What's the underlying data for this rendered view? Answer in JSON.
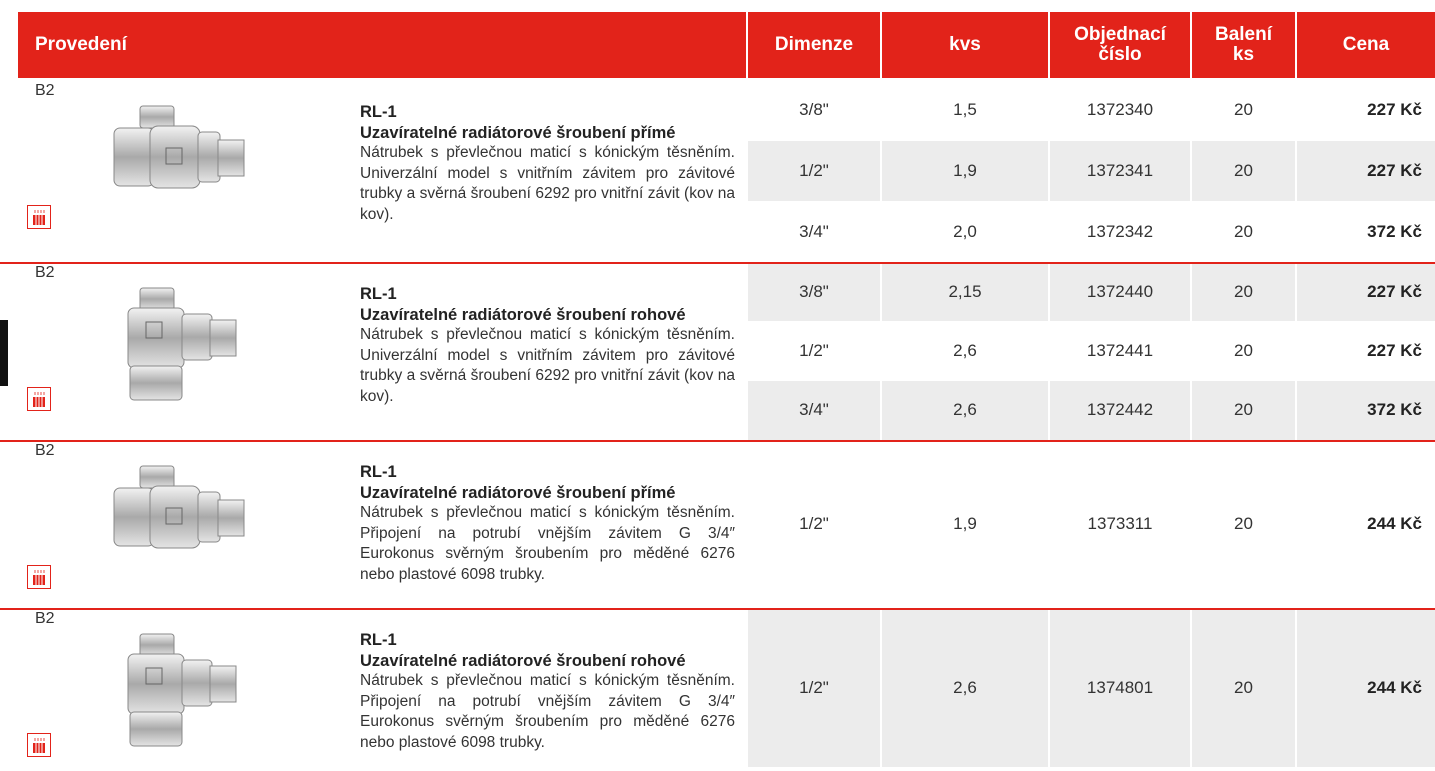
{
  "header": {
    "columns": [
      "Provedení",
      "Dimenze",
      "kvs",
      "Objednací číslo",
      "Balení ks",
      "Cena"
    ]
  },
  "groups": [
    {
      "code": "B2",
      "name": "RL-1",
      "title": "Uzavíratelné radiátorové šroubení přímé",
      "description": "Nátrubek s převlečnou maticí s kónickým těsněním. Univerzální model s vnitřním závitem pro závitové trubky a svěrná šroubení 6292 pro vnitřní závit (kov na kov).",
      "rows": [
        [
          "3/8\"",
          "1,5",
          "1372340",
          "20",
          "227 Kč"
        ],
        [
          "1/2\"",
          "1,9",
          "1372341",
          "20",
          "227 Kč"
        ],
        [
          "3/4\"",
          "2,0",
          "1372342",
          "20",
          "372 Kč"
        ]
      ]
    },
    {
      "code": "B2",
      "name": "RL-1",
      "title": "Uzavíratelné radiátorové šroubení rohové",
      "description": "Nátrubek s převlečnou maticí s kónickým těsněním. Univerzální model s vnitřním závitem pro závitové trubky a svěrná šroubení 6292 pro vnitřní závit (kov na kov).",
      "rows": [
        [
          "3/8\"",
          "2,15",
          "1372440",
          "20",
          "227 Kč"
        ],
        [
          "1/2\"",
          "2,6",
          "1372441",
          "20",
          "227 Kč"
        ],
        [
          "3/4\"",
          "2,6",
          "1372442",
          "20",
          "372 Kč"
        ]
      ]
    },
    {
      "code": "B2",
      "name": "RL-1",
      "title": "Uzavíratelné radiátorové šroubení přímé",
      "description": "Nátrubek s převlečnou maticí s kónickým těsněním. Připojení na potrubí vnějším závitem G 3/4″ Eurokonus svěrným šroubením pro měděné 6276 nebo plastové 6098 trubky.",
      "rows": [
        [
          "1/2\"",
          "1,9",
          "1373311",
          "20",
          "244 Kč"
        ]
      ]
    },
    {
      "code": "B2",
      "name": "RL-1",
      "title": "Uzavíratelné radiátorové šroubení rohové",
      "description": "Nátrubek s převlečnou maticí s kónickým těsněním. Připojení na potrubí vnějším závitem G 3/4″ Eurokonus svěrným šroubením pro měděné 6276 nebo plastové 6098 trubky.",
      "rows": [
        [
          "1/2\"",
          "2,6",
          "1374801",
          "20",
          "244 Kč"
        ]
      ]
    }
  ]
}
